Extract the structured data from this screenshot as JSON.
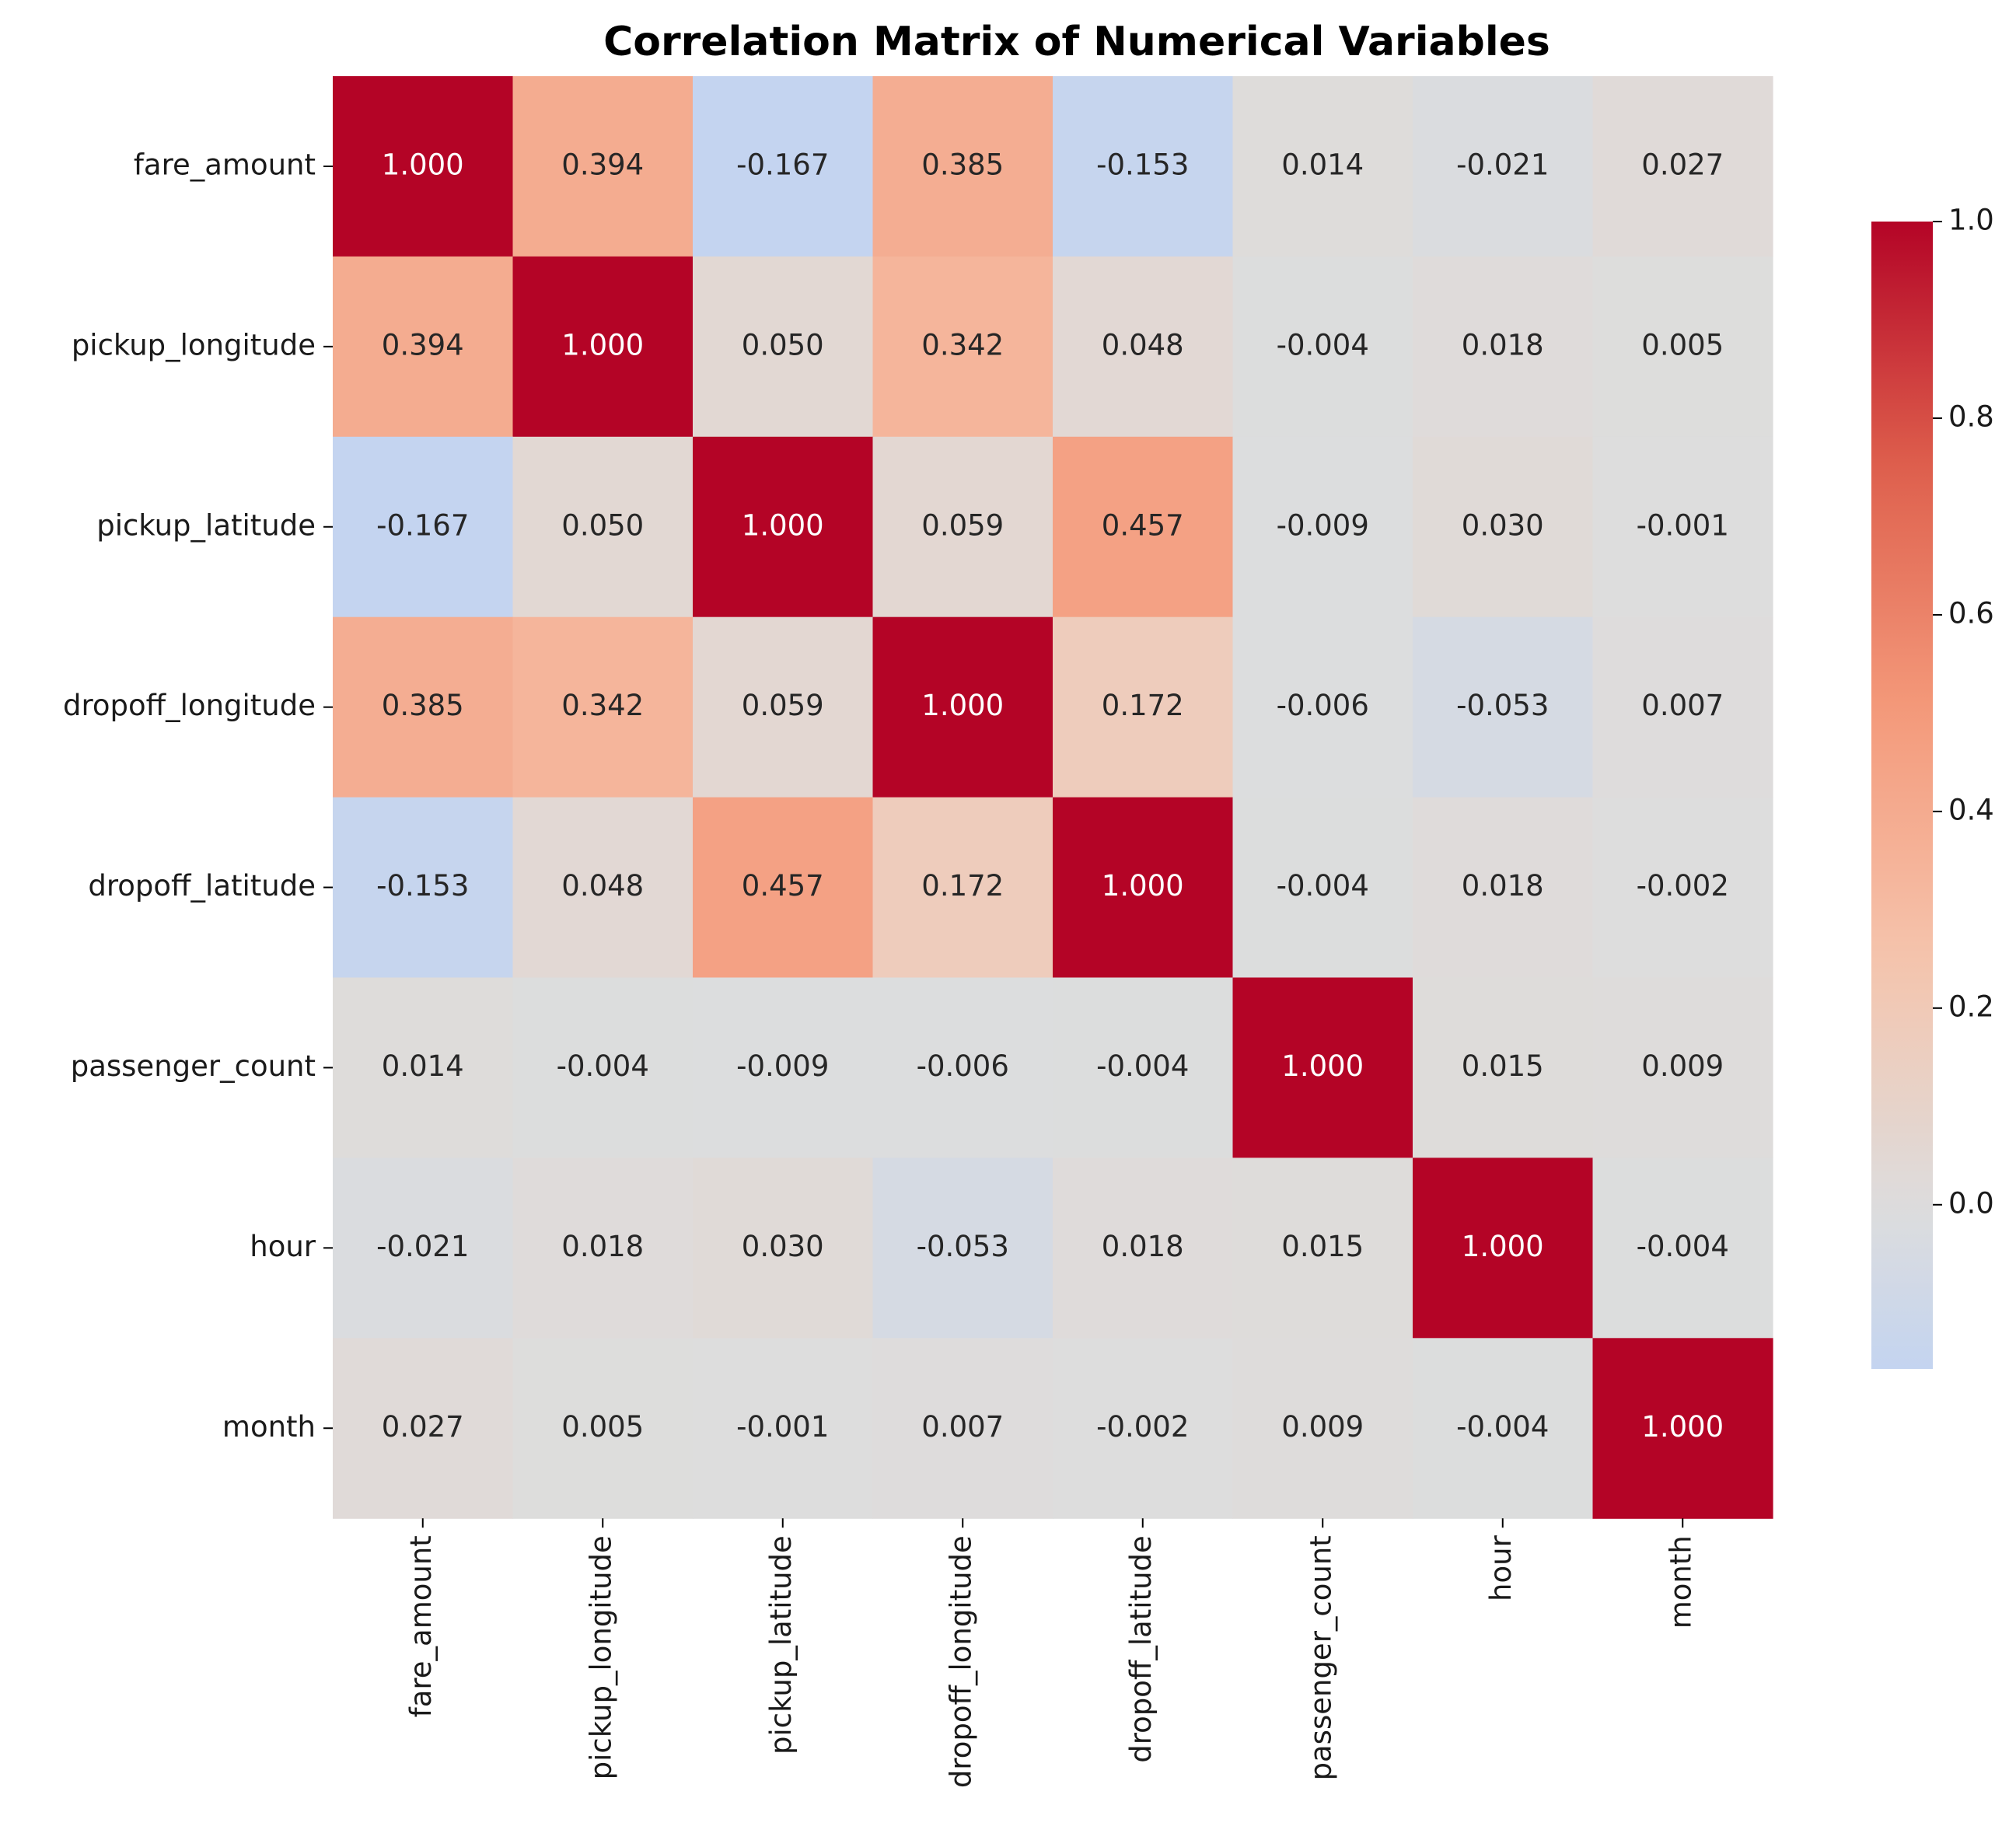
{
  "chart_data": {
    "type": "heatmap",
    "title": "Correlation Matrix of Numerical Variables",
    "xlabel": "",
    "ylabel": "",
    "categories": [
      "fare_amount",
      "pickup_longitude",
      "pickup_latitude",
      "dropoff_longitude",
      "dropoff_latitude",
      "passenger_count",
      "hour",
      "month"
    ],
    "values": [
      [
        1.0,
        0.394,
        -0.167,
        0.385,
        -0.153,
        0.014,
        -0.021,
        0.027
      ],
      [
        0.394,
        1.0,
        0.05,
        0.342,
        0.048,
        -0.004,
        0.018,
        0.005
      ],
      [
        -0.167,
        0.05,
        1.0,
        0.059,
        0.457,
        -0.009,
        0.03,
        -0.001
      ],
      [
        0.385,
        0.342,
        0.059,
        1.0,
        0.172,
        -0.006,
        -0.053,
        0.007
      ],
      [
        -0.153,
        0.048,
        0.457,
        0.172,
        1.0,
        -0.004,
        0.018,
        -0.002
      ],
      [
        0.014,
        -0.004,
        -0.009,
        -0.006,
        -0.004,
        1.0,
        0.015,
        0.009
      ],
      [
        -0.021,
        0.018,
        0.03,
        -0.053,
        0.018,
        0.015,
        1.0,
        -0.004
      ],
      [
        0.027,
        0.005,
        -0.001,
        0.007,
        -0.002,
        0.009,
        -0.004,
        1.0
      ]
    ],
    "value_format": "0.000",
    "colormap": "coolwarm",
    "center": 0,
    "color_range": [
      -0.167,
      1.0
    ],
    "colorbar": {
      "ticks": [
        0.0,
        0.2,
        0.4,
        0.6,
        0.8,
        1.0
      ],
      "tick_labels": [
        "0.0",
        "0.2",
        "0.4",
        "0.6",
        "0.8",
        "1.0"
      ]
    },
    "legend": "right",
    "grid": false
  }
}
